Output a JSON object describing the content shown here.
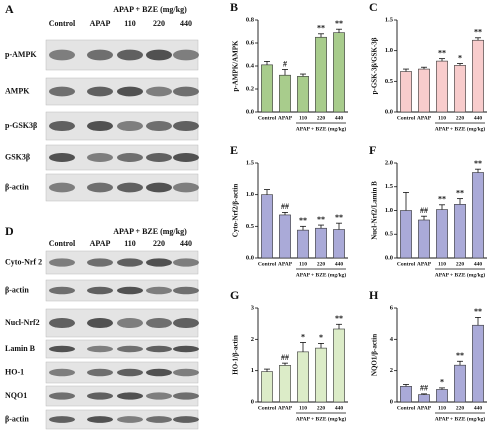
{
  "blots": [
    {
      "panel": "A",
      "header": "APAP + BZE (mg/kg)",
      "columns": [
        "Control",
        "APAP",
        "110",
        "220",
        "440"
      ],
      "rows": [
        "p-AMPK",
        "AMPK",
        "p-GSK3β",
        "GSK3β",
        "β-actin"
      ]
    },
    {
      "panel": "D",
      "header": "APAP + BZE (mg/kg)",
      "columns": [
        "Control",
        "APAP",
        "110",
        "220",
        "440"
      ],
      "rows": [
        "Cyto-Nrf 2",
        "β-actin",
        "Nucl-Nrf2",
        "Lamin B",
        "HO-1",
        "NQO1",
        "β-actin"
      ]
    }
  ],
  "chart_data": [
    {
      "type": "bar",
      "panel": "B",
      "ylabel": "p-AMPK/AMPK",
      "group_label": "APAP + BZE (mg/kg)",
      "color": "#a8cc8c",
      "categories": [
        "Control",
        "APAP",
        "110",
        "220",
        "440"
      ],
      "values": [
        0.41,
        0.32,
        0.31,
        0.65,
        0.69
      ],
      "errors": [
        0.03,
        0.05,
        0.02,
        0.03,
        0.03
      ],
      "annotations": [
        null,
        "#",
        null,
        "**",
        "**"
      ],
      "ylim": [
        0,
        0.8
      ],
      "yticks": [
        {
          "value": 0,
          "label": "0.0"
        },
        {
          "value": 0.2,
          "label": "0.2"
        },
        {
          "value": 0.4,
          "label": "0.4"
        },
        {
          "value": 0.6,
          "label": "0.6"
        },
        {
          "value": 0.8,
          "label": "0.8"
        }
      ]
    },
    {
      "type": "bar",
      "panel": "C",
      "ylabel": "p-GSK-3β/GSK-3β",
      "group_label": "APAP + BZE (mg/kg)",
      "color": "#f8cccc",
      "categories": [
        "Control",
        "APAP",
        "110",
        "220",
        "440"
      ],
      "values": [
        0.66,
        0.7,
        0.83,
        0.76,
        1.17
      ],
      "errors": [
        0.04,
        0.03,
        0.04,
        0.03,
        0.04
      ],
      "annotations": [
        null,
        null,
        "**",
        "*",
        "**"
      ],
      "ylim": [
        0,
        1.5
      ],
      "yticks": [
        {
          "value": 0,
          "label": "0.0"
        },
        0.5,
        {
          "value": 1,
          "label": "1.0"
        },
        1.5
      ]
    },
    {
      "type": "bar",
      "panel": "E",
      "ylabel": "Cyto-Nrf2/β-actin",
      "group_label": "APAP + BZE (mg/kg)",
      "color": "#aaaad8",
      "categories": [
        "Control",
        "APAP",
        "110",
        "220",
        "440"
      ],
      "values": [
        1.0,
        0.68,
        0.44,
        0.47,
        0.45
      ],
      "errors": [
        0.08,
        0.04,
        0.06,
        0.05,
        0.1
      ],
      "annotations": [
        null,
        "##",
        "**",
        "**",
        "**"
      ],
      "ylim": [
        0,
        1.5
      ],
      "yticks": [
        {
          "value": 0,
          "label": "0.0"
        },
        0.5,
        {
          "value": 1,
          "label": "1.0"
        },
        1.5
      ]
    },
    {
      "type": "bar",
      "panel": "F",
      "ylabel": "Nucl-Nrf2/Lamin B",
      "group_label": "APAP + BZE (mg/kg)",
      "color": "#aaaad8",
      "categories": [
        "Control",
        "APAP",
        "110",
        "220",
        "440"
      ],
      "values": [
        1.0,
        0.8,
        1.02,
        1.13,
        1.8
      ],
      "errors": [
        0.38,
        0.08,
        0.1,
        0.12,
        0.07
      ],
      "annotations": [
        null,
        "##",
        "**",
        "**",
        "**"
      ],
      "ylim": [
        0,
        2
      ],
      "yticks": [
        {
          "value": 0,
          "label": "0.0"
        },
        0.5,
        {
          "value": 1,
          "label": "1.0"
        },
        1.5,
        {
          "value": 2,
          "label": "2.0"
        }
      ]
    },
    {
      "type": "bar",
      "panel": "G",
      "ylabel": "HO-1/β-actin",
      "group_label": "APAP + BZE (mg/kg)",
      "color": "#dcecc8",
      "categories": [
        "Control",
        "APAP",
        "110",
        "220",
        "440"
      ],
      "values": [
        0.97,
        1.17,
        1.6,
        1.72,
        2.33
      ],
      "errors": [
        0.08,
        0.07,
        0.3,
        0.15,
        0.15
      ],
      "annotations": [
        null,
        "##",
        "*",
        "*",
        "**"
      ],
      "ylim": [
        0,
        3
      ],
      "yticks": [
        0,
        1,
        2,
        3
      ]
    },
    {
      "type": "bar",
      "panel": "H",
      "ylabel": "NQO1/β-actin",
      "group_label": "APAP + BZE (mg/kg)",
      "color": "#aaaad8",
      "categories": [
        "Control",
        "APAP",
        "110",
        "220",
        "440"
      ],
      "values": [
        1.0,
        0.47,
        0.8,
        2.35,
        4.9
      ],
      "errors": [
        0.12,
        0.05,
        0.1,
        0.25,
        0.5
      ],
      "annotations": [
        null,
        "##",
        "*",
        "**",
        "**"
      ],
      "ylim": [
        0,
        6
      ],
      "yticks": [
        0,
        2,
        4,
        6
      ]
    }
  ]
}
